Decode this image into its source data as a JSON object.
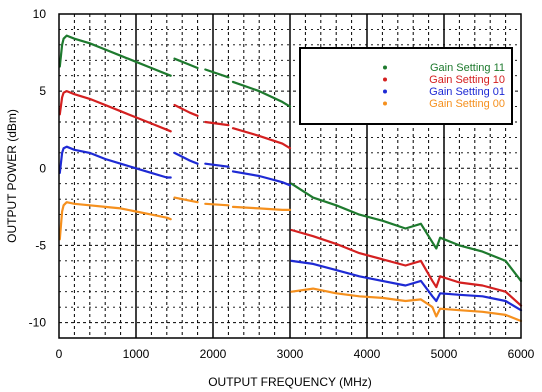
{
  "chart_data": {
    "type": "line",
    "xlabel": "OUTPUT FREQUENCY (MHz)",
    "ylabel": "OUTPUT POWER (dBm)",
    "xlim": [
      0,
      6000
    ],
    "ylim": [
      -11,
      10
    ],
    "x_ticks": [
      0,
      1000,
      2000,
      3000,
      4000,
      5000,
      6000
    ],
    "y_ticks": [
      10,
      5,
      0,
      -5,
      -10
    ],
    "grid": true,
    "legend_position": "top-right",
    "series": [
      {
        "name": "Gain Setting 11",
        "color": "#1e7a2e",
        "segments": [
          [
            [
              10,
              6.6
            ],
            [
              40,
              8.0
            ],
            [
              60,
              8.4
            ],
            [
              100,
              8.6
            ],
            [
              200,
              8.4
            ],
            [
              400,
              8.1
            ],
            [
              600,
              7.7
            ],
            [
              800,
              7.3
            ],
            [
              1000,
              6.9
            ],
            [
              1200,
              6.5
            ],
            [
              1400,
              6.1
            ],
            [
              1450,
              6.0
            ]
          ],
          [
            [
              1500,
              7.1
            ],
            [
              1700,
              6.7
            ],
            [
              1800,
              6.5
            ]
          ],
          [
            [
              1900,
              6.4
            ],
            [
              2200,
              5.9
            ]
          ],
          [
            [
              2260,
              5.6
            ],
            [
              2600,
              5.0
            ],
            [
              2900,
              4.3
            ],
            [
              3000,
              4.0
            ]
          ],
          [
            [
              3020,
              -1.0
            ],
            [
              3300,
              -1.9
            ],
            [
              3600,
              -2.4
            ],
            [
              3900,
              -3.0
            ],
            [
              4200,
              -3.4
            ],
            [
              4500,
              -3.9
            ],
            [
              4700,
              -3.6
            ],
            [
              4850,
              -4.8
            ],
            [
              4900,
              -5.2
            ],
            [
              4950,
              -4.5
            ],
            [
              5200,
              -5.0
            ],
            [
              5500,
              -5.4
            ],
            [
              5800,
              -6.0
            ],
            [
              6000,
              -7.3
            ]
          ]
        ]
      },
      {
        "name": "Gain Setting 10",
        "color": "#d42020",
        "segments": [
          [
            [
              10,
              3.5
            ],
            [
              40,
              4.6
            ],
            [
              60,
              4.9
            ],
            [
              100,
              5.0
            ],
            [
              200,
              4.8
            ],
            [
              400,
              4.5
            ],
            [
              600,
              4.1
            ],
            [
              800,
              3.7
            ],
            [
              1000,
              3.3
            ],
            [
              1200,
              2.9
            ],
            [
              1400,
              2.5
            ],
            [
              1450,
              2.4
            ]
          ],
          [
            [
              1500,
              4.1
            ],
            [
              1700,
              3.6
            ],
            [
              1800,
              3.4
            ]
          ],
          [
            [
              1900,
              3.0
            ],
            [
              2200,
              2.8
            ]
          ],
          [
            [
              2260,
              2.6
            ],
            [
              2600,
              2.1
            ],
            [
              2900,
              1.6
            ],
            [
              3000,
              1.3
            ]
          ],
          [
            [
              3020,
              -4.0
            ],
            [
              3300,
              -4.4
            ],
            [
              3600,
              -4.9
            ],
            [
              3900,
              -5.5
            ],
            [
              4200,
              -5.9
            ],
            [
              4500,
              -6.3
            ],
            [
              4700,
              -6.0
            ],
            [
              4850,
              -7.3
            ],
            [
              4900,
              -7.7
            ],
            [
              4950,
              -7.0
            ],
            [
              5200,
              -7.4
            ],
            [
              5500,
              -7.6
            ],
            [
              5800,
              -8.0
            ],
            [
              6000,
              -8.9
            ]
          ]
        ]
      },
      {
        "name": "Gain Setting 01",
        "color": "#1e2ad4",
        "segments": [
          [
            [
              10,
              -0.3
            ],
            [
              40,
              1.0
            ],
            [
              60,
              1.3
            ],
            [
              100,
              1.4
            ],
            [
              200,
              1.2
            ],
            [
              400,
              1.0
            ],
            [
              600,
              0.6
            ],
            [
              800,
              0.3
            ],
            [
              1000,
              0.0
            ],
            [
              1200,
              -0.3
            ],
            [
              1400,
              -0.6
            ],
            [
              1450,
              -0.6
            ]
          ],
          [
            [
              1500,
              1.0
            ],
            [
              1700,
              0.5
            ],
            [
              1800,
              0.3
            ]
          ],
          [
            [
              1900,
              0.3
            ],
            [
              2200,
              0.1
            ]
          ],
          [
            [
              2260,
              -0.2
            ],
            [
              2600,
              -0.5
            ],
            [
              2900,
              -0.9
            ],
            [
              3000,
              -1.1
            ]
          ],
          [
            [
              3020,
              -6.0
            ],
            [
              3300,
              -6.2
            ],
            [
              3600,
              -6.6
            ],
            [
              3900,
              -7.0
            ],
            [
              4200,
              -7.3
            ],
            [
              4500,
              -7.6
            ],
            [
              4700,
              -7.3
            ],
            [
              4850,
              -8.3
            ],
            [
              4900,
              -8.6
            ],
            [
              4950,
              -8.1
            ],
            [
              5200,
              -8.2
            ],
            [
              5500,
              -8.3
            ],
            [
              5800,
              -8.6
            ],
            [
              6000,
              -9.2
            ]
          ]
        ]
      },
      {
        "name": "Gain Setting 00",
        "color": "#f5901e",
        "segments": [
          [
            [
              10,
              -4.6
            ],
            [
              40,
              -2.8
            ],
            [
              60,
              -2.4
            ],
            [
              100,
              -2.2
            ],
            [
              200,
              -2.3
            ],
            [
              400,
              -2.4
            ],
            [
              600,
              -2.5
            ],
            [
              800,
              -2.6
            ],
            [
              1000,
              -2.8
            ],
            [
              1200,
              -3.0
            ],
            [
              1400,
              -3.2
            ],
            [
              1450,
              -3.3
            ]
          ],
          [
            [
              1500,
              -1.9
            ],
            [
              1700,
              -2.1
            ],
            [
              1800,
              -2.2
            ]
          ],
          [
            [
              1900,
              -2.3
            ],
            [
              2200,
              -2.4
            ]
          ],
          [
            [
              2260,
              -2.5
            ],
            [
              2600,
              -2.6
            ],
            [
              2900,
              -2.7
            ],
            [
              3000,
              -2.7
            ]
          ],
          [
            [
              3020,
              -8.0
            ],
            [
              3300,
              -7.8
            ],
            [
              3600,
              -8.1
            ],
            [
              3900,
              -8.3
            ],
            [
              4200,
              -8.4
            ],
            [
              4500,
              -8.6
            ],
            [
              4700,
              -8.5
            ],
            [
              4850,
              -9.0
            ],
            [
              4900,
              -9.6
            ],
            [
              4950,
              -9.1
            ],
            [
              5200,
              -9.2
            ],
            [
              5500,
              -9.3
            ],
            [
              5800,
              -9.5
            ],
            [
              6000,
              -9.9
            ]
          ]
        ]
      }
    ]
  }
}
